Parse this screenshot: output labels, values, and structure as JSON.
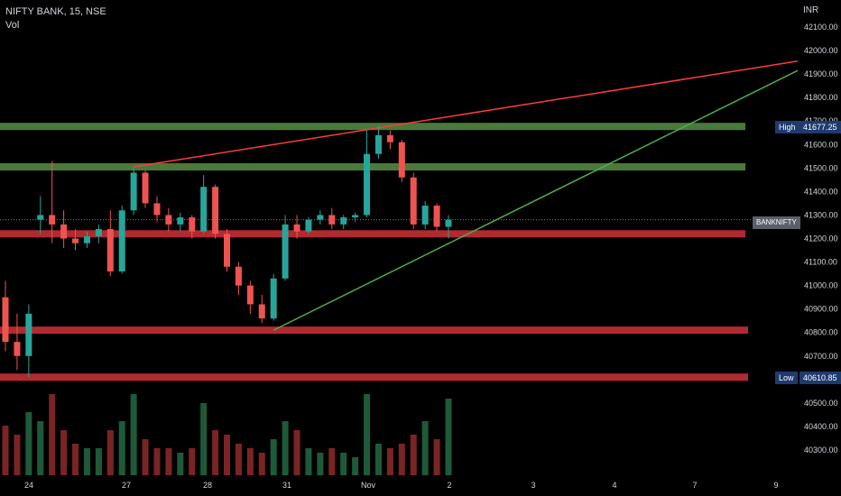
{
  "header": {
    "symbol_line": "NIFTY BANK, 15, NSE",
    "volume_label": "Vol",
    "currency": "INR"
  },
  "price_tags": {
    "high_label": "High",
    "high_value": "41677.25",
    "symbol_label": "BANKNIFTY",
    "low_label": "Low",
    "low_value": "40610.85"
  },
  "colors": {
    "background": "#000000",
    "up": "#26a69a",
    "down": "#ef5350",
    "green_zone": "#4a7a3a",
    "red_zone": "#b02a30",
    "resistance_line": "#ff3b3b",
    "support_line": "#4caf50",
    "tag_blue": "#1e3a6e"
  },
  "chart_data": {
    "type": "candlestick",
    "y_axis": {
      "ticks": [
        40300,
        40400,
        40500,
        40600,
        40700,
        40800,
        40900,
        41000,
        41100,
        41200,
        41300,
        41400,
        41500,
        41600,
        41700,
        41800,
        41900,
        42000,
        42100
      ],
      "tick_labels": [
        "40300.00",
        "40400.00",
        "40500.00",
        "40600.00",
        "40700.00",
        "40800.00",
        "40900.00",
        "41000.00",
        "41100.00",
        "41200.00",
        "41300.00",
        "41400.00",
        "41500.00",
        "41600.00",
        "41700.00",
        "41800.00",
        "41900.00",
        "42000.00",
        "42100.00"
      ]
    },
    "x_axis": {
      "labels": [
        "24",
        "27",
        "28",
        "31",
        "Nov",
        "2",
        "3",
        "4",
        "7",
        "9"
      ]
    },
    "zones": [
      {
        "color": "green",
        "price": 41677
      },
      {
        "color": "green",
        "price": 41505
      },
      {
        "color": "red",
        "price": 41220
      },
      {
        "color": "red",
        "price": 40810
      },
      {
        "color": "red",
        "price": 40610
      }
    ],
    "trend_lines": [
      {
        "name": "resistance",
        "start_bar": 11,
        "start_price": 41505,
        "end_bar": "extend",
        "end_price": 41955
      },
      {
        "name": "support",
        "start_bar": 23,
        "start_price": 40810,
        "end_bar": "extend",
        "end_price": 41915
      }
    ],
    "candles": [
      {
        "o": 40950,
        "h": 41020,
        "l": 40720,
        "c": 40760,
        "v": 0.55
      },
      {
        "o": 40760,
        "h": 40880,
        "l": 40640,
        "c": 40700,
        "v": 0.45
      },
      {
        "o": 40700,
        "h": 40920,
        "l": 40610,
        "c": 40880,
        "v": 0.7
      },
      {
        "o": 41280,
        "h": 41380,
        "l": 41220,
        "c": 41300,
        "v": 0.6
      },
      {
        "o": 41300,
        "h": 41530,
        "l": 41180,
        "c": 41260,
        "v": 0.9
      },
      {
        "o": 41260,
        "h": 41320,
        "l": 41160,
        "c": 41200,
        "v": 0.5
      },
      {
        "o": 41200,
        "h": 41240,
        "l": 41150,
        "c": 41180,
        "v": 0.35
      },
      {
        "o": 41180,
        "h": 41230,
        "l": 41160,
        "c": 41210,
        "v": 0.3
      },
      {
        "o": 41210,
        "h": 41260,
        "l": 41180,
        "c": 41240,
        "v": 0.3
      },
      {
        "o": 41240,
        "h": 41320,
        "l": 41040,
        "c": 41060,
        "v": 0.5
      },
      {
        "o": 41060,
        "h": 41340,
        "l": 41050,
        "c": 41320,
        "v": 0.6
      },
      {
        "o": 41320,
        "h": 41505,
        "l": 41300,
        "c": 41480,
        "v": 0.9
      },
      {
        "o": 41480,
        "h": 41490,
        "l": 41330,
        "c": 41350,
        "v": 0.4
      },
      {
        "o": 41350,
        "h": 41380,
        "l": 41270,
        "c": 41300,
        "v": 0.3
      },
      {
        "o": 41300,
        "h": 41330,
        "l": 41230,
        "c": 41260,
        "v": 0.3
      },
      {
        "o": 41260,
        "h": 41310,
        "l": 41230,
        "c": 41290,
        "v": 0.25
      },
      {
        "o": 41290,
        "h": 41300,
        "l": 41200,
        "c": 41230,
        "v": 0.3
      },
      {
        "o": 41230,
        "h": 41470,
        "l": 41220,
        "c": 41420,
        "v": 0.8
      },
      {
        "o": 41420,
        "h": 41430,
        "l": 41200,
        "c": 41220,
        "v": 0.5
      },
      {
        "o": 41220,
        "h": 41240,
        "l": 41060,
        "c": 41080,
        "v": 0.45
      },
      {
        "o": 41080,
        "h": 41100,
        "l": 40960,
        "c": 41000,
        "v": 0.35
      },
      {
        "o": 41000,
        "h": 41020,
        "l": 40880,
        "c": 40920,
        "v": 0.3
      },
      {
        "o": 40920,
        "h": 40960,
        "l": 40840,
        "c": 40860,
        "v": 0.25
      },
      {
        "o": 40860,
        "h": 41050,
        "l": 40850,
        "c": 41030,
        "v": 0.4
      },
      {
        "o": 41030,
        "h": 41300,
        "l": 41020,
        "c": 41260,
        "v": 0.6
      },
      {
        "o": 41260,
        "h": 41300,
        "l": 41200,
        "c": 41230,
        "v": 0.5
      },
      {
        "o": 41230,
        "h": 41290,
        "l": 41220,
        "c": 41280,
        "v": 0.3
      },
      {
        "o": 41280,
        "h": 41320,
        "l": 41260,
        "c": 41300,
        "v": 0.25
      },
      {
        "o": 41300,
        "h": 41330,
        "l": 41240,
        "c": 41260,
        "v": 0.3
      },
      {
        "o": 41260,
        "h": 41300,
        "l": 41240,
        "c": 41290,
        "v": 0.25
      },
      {
        "o": 41290,
        "h": 41310,
        "l": 41270,
        "c": 41300,
        "v": 0.2
      },
      {
        "o": 41300,
        "h": 41660,
        "l": 41290,
        "c": 41560,
        "v": 0.9
      },
      {
        "o": 41560,
        "h": 41680,
        "l": 41540,
        "c": 41640,
        "v": 0.35
      },
      {
        "o": 41640,
        "h": 41660,
        "l": 41580,
        "c": 41610,
        "v": 0.3
      },
      {
        "o": 41610,
        "h": 41620,
        "l": 41440,
        "c": 41460,
        "v": 0.35
      },
      {
        "o": 41460,
        "h": 41480,
        "l": 41240,
        "c": 41260,
        "v": 0.45
      },
      {
        "o": 41260,
        "h": 41360,
        "l": 41240,
        "c": 41340,
        "v": 0.6
      },
      {
        "o": 41340,
        "h": 41350,
        "l": 41230,
        "c": 41250,
        "v": 0.4
      },
      {
        "o": 41250,
        "h": 41300,
        "l": 41200,
        "c": 41280,
        "v": 0.85
      }
    ]
  }
}
